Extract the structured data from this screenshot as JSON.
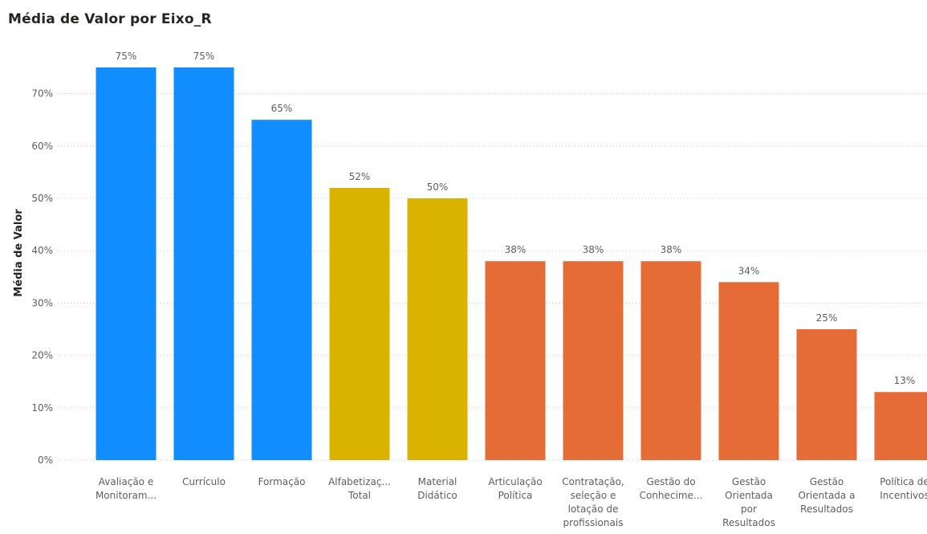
{
  "chart_data": {
    "type": "bar",
    "title": "Média de Valor por Eixo_R",
    "xlabel": "",
    "ylabel": "Média de Valor",
    "ylim": [
      0,
      75
    ],
    "yticks": [
      0,
      10,
      20,
      30,
      40,
      50,
      60,
      70
    ],
    "ytick_labels": [
      "0%",
      "10%",
      "20%",
      "30%",
      "40%",
      "50%",
      "60%",
      "70%"
    ],
    "grid": true,
    "categories": [
      [
        "Avaliação e",
        "Monitoram..."
      ],
      [
        "Currículo"
      ],
      [
        "Formação"
      ],
      [
        "Alfabetizaç...",
        "Total"
      ],
      [
        "Material",
        "Didático"
      ],
      [
        "Articulação",
        "Política"
      ],
      [
        "Contratação,",
        "seleção e",
        "lotação de",
        "profissionais"
      ],
      [
        "Gestão do",
        "Conhecime..."
      ],
      [
        "Gestão",
        "Orientada",
        "por",
        "Resultados"
      ],
      [
        "Gestão",
        "Orientada a",
        "Resultados"
      ],
      [
        "Política de",
        "Incentivos"
      ]
    ],
    "values": [
      75,
      75,
      65,
      52,
      50,
      38,
      38,
      38,
      34,
      25,
      13
    ],
    "data_labels": [
      "75%",
      "75%",
      "65%",
      "52%",
      "50%",
      "38%",
      "38%",
      "38%",
      "34%",
      "25%",
      "13%"
    ],
    "bar_colors": [
      "#118DFF",
      "#118DFF",
      "#118DFF",
      "#D9B300",
      "#D9B300",
      "#E66C37",
      "#E66C37",
      "#E66C37",
      "#E66C37",
      "#E66C37",
      "#E66C37"
    ]
  }
}
